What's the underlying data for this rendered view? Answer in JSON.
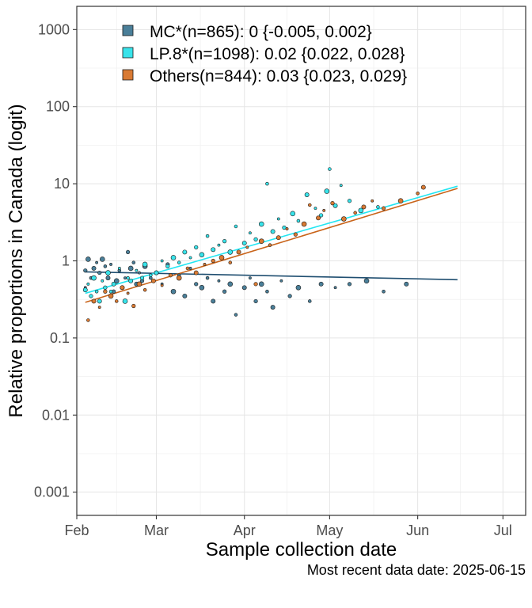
{
  "chart_data": {
    "type": "scatter",
    "xlabel": "Sample collection date",
    "ylabel": "Relative proportions in Canada (logit)",
    "caption": "Most recent data date: 2025-06-15",
    "y_scale": "log",
    "xlim": [
      "2025-02-01",
      "2025-07-09"
    ],
    "ylim": [
      0.0005,
      2000
    ],
    "grid": true,
    "legend_position": "top-left",
    "x_ticks": [
      {
        "date": "2025-02-01",
        "label": "Feb"
      },
      {
        "date": "2025-03-01",
        "label": "Mar"
      },
      {
        "date": "2025-04-01",
        "label": "Apr"
      },
      {
        "date": "2025-05-01",
        "label": "May"
      },
      {
        "date": "2025-06-01",
        "label": "Jun"
      },
      {
        "date": "2025-07-01",
        "label": "Jul"
      }
    ],
    "y_ticks": [
      {
        "value": 0.001,
        "label": "0.001"
      },
      {
        "value": 0.01,
        "label": "0.01"
      },
      {
        "value": 0.1,
        "label": "0.1"
      },
      {
        "value": 1,
        "label": "1"
      },
      {
        "value": 10,
        "label": "10"
      },
      {
        "value": 100,
        "label": "100"
      },
      {
        "value": 1000,
        "label": "1000"
      }
    ],
    "series": [
      {
        "name": "MC*(n=865): 0 {-0.005, 0.002}",
        "color": "#4a7f99",
        "line_color": "#1f4e70",
        "trend": [
          [
            "2025-02-04",
            0.72
          ],
          [
            "2025-06-15",
            0.57
          ]
        ],
        "points": [
          [
            "2025-02-04",
            0.45
          ],
          [
            "2025-02-04",
            0.75
          ],
          [
            "2025-02-05",
            1.05
          ],
          [
            "2025-02-06",
            0.6
          ],
          [
            "2025-02-07",
            0.8
          ],
          [
            "2025-02-08",
            0.95
          ],
          [
            "2025-02-09",
            0.7
          ],
          [
            "2025-02-10",
            1.05
          ],
          [
            "2025-02-11",
            0.85
          ],
          [
            "2025-02-12",
            0.6
          ],
          [
            "2025-02-13",
            0.9
          ],
          [
            "2025-02-14",
            0.4
          ],
          [
            "2025-02-15",
            0.55
          ],
          [
            "2025-02-16",
            0.75
          ],
          [
            "2025-02-17",
            0.45
          ],
          [
            "2025-02-18",
            0.6
          ],
          [
            "2025-02-19",
            1.3
          ],
          [
            "2025-02-20",
            0.8
          ],
          [
            "2025-02-21",
            0.95
          ],
          [
            "2025-02-22",
            0.5
          ],
          [
            "2025-02-23",
            0.7
          ],
          [
            "2025-02-24",
            0.55
          ],
          [
            "2025-02-25",
            0.85
          ],
          [
            "2025-02-27",
            0.6
          ],
          [
            "2025-03-01",
            0.7
          ],
          [
            "2025-03-03",
            0.5
          ],
          [
            "2025-03-05",
            0.9
          ],
          [
            "2025-03-07",
            0.4
          ],
          [
            "2025-03-09",
            0.65
          ],
          [
            "2025-03-11",
            0.35
          ],
          [
            "2025-03-13",
            0.8
          ],
          [
            "2025-03-15",
            0.5
          ],
          [
            "2025-03-17",
            0.45
          ],
          [
            "2025-03-19",
            0.6
          ],
          [
            "2025-03-21",
            0.3
          ],
          [
            "2025-03-23",
            0.55
          ],
          [
            "2025-03-25",
            0.4
          ],
          [
            "2025-03-27",
            0.5
          ],
          [
            "2025-03-29",
            0.2
          ],
          [
            "2025-04-01",
            0.45
          ],
          [
            "2025-04-03",
            0.6
          ],
          [
            "2025-04-05",
            0.3
          ],
          [
            "2025-04-07",
            0.5
          ],
          [
            "2025-04-09",
            0.4
          ],
          [
            "2025-04-11",
            0.25
          ],
          [
            "2025-04-14",
            0.55
          ],
          [
            "2025-04-17",
            0.35
          ],
          [
            "2025-04-20",
            0.45
          ],
          [
            "2025-04-24",
            0.3
          ],
          [
            "2025-04-28",
            0.5
          ],
          [
            "2025-05-03",
            0.45
          ],
          [
            "2025-05-08",
            0.5
          ],
          [
            "2025-05-14",
            0.55
          ],
          [
            "2025-05-20",
            0.4
          ],
          [
            "2025-05-28",
            0.5
          ]
        ]
      },
      {
        "name": "LP.8*(n=1098): 0.02 {0.022, 0.028}",
        "color": "#38e3ea",
        "line_color": "#22e6f2",
        "trend": [
          [
            "2025-02-04",
            0.38
          ],
          [
            "2025-06-15",
            9.3
          ]
        ],
        "points": [
          [
            "2025-02-04",
            0.42
          ],
          [
            "2025-02-05",
            0.5
          ],
          [
            "2025-02-06",
            0.35
          ],
          [
            "2025-02-07",
            0.6
          ],
          [
            "2025-02-08",
            0.4
          ],
          [
            "2025-02-09",
            0.3
          ],
          [
            "2025-02-10",
            0.55
          ],
          [
            "2025-02-11",
            0.45
          ],
          [
            "2025-02-12",
            0.7
          ],
          [
            "2025-02-13",
            0.4
          ],
          [
            "2025-02-14",
            0.5
          ],
          [
            "2025-02-16",
            0.8
          ],
          [
            "2025-02-17",
            0.45
          ],
          [
            "2025-02-18",
            0.3
          ],
          [
            "2025-02-19",
            0.6
          ],
          [
            "2025-02-20",
            0.55
          ],
          [
            "2025-02-22",
            0.75
          ],
          [
            "2025-02-24",
            0.6
          ],
          [
            "2025-02-25",
            0.9
          ],
          [
            "2025-02-27",
            0.65
          ],
          [
            "2025-03-01",
            0.7
          ],
          [
            "2025-03-03",
            1.0
          ],
          [
            "2025-03-05",
            0.85
          ],
          [
            "2025-03-07",
            1.1
          ],
          [
            "2025-03-09",
            0.95
          ],
          [
            "2025-03-11",
            1.3
          ],
          [
            "2025-03-13",
            1.1
          ],
          [
            "2025-03-15",
            1.5
          ],
          [
            "2025-03-17",
            1.2
          ],
          [
            "2025-03-19",
            2.1
          ],
          [
            "2025-03-21",
            1.4
          ],
          [
            "2025-03-23",
            1.6
          ],
          [
            "2025-03-25",
            1.8
          ],
          [
            "2025-03-27",
            1.3
          ],
          [
            "2025-03-29",
            2.8
          ],
          [
            "2025-04-01",
            1.7
          ],
          [
            "2025-04-03",
            2.3
          ],
          [
            "2025-04-05",
            1.9
          ],
          [
            "2025-04-07",
            3.0
          ],
          [
            "2025-04-09",
            10.0
          ],
          [
            "2025-04-11",
            2.4
          ],
          [
            "2025-04-13",
            3.5
          ],
          [
            "2025-04-15",
            2.7
          ],
          [
            "2025-04-18",
            4.1
          ],
          [
            "2025-04-20",
            3.3
          ],
          [
            "2025-04-23",
            7.2
          ],
          [
            "2025-04-26",
            4.8
          ],
          [
            "2025-04-28",
            3.9
          ],
          [
            "2025-04-30",
            8.0
          ],
          [
            "2025-05-01",
            15.5
          ],
          [
            "2025-05-03",
            5.2
          ],
          [
            "2025-05-05",
            9.5
          ],
          [
            "2025-05-08",
            6.0
          ],
          [
            "2025-05-12",
            4.5
          ],
          [
            "2025-05-18",
            5.0
          ]
        ]
      },
      {
        "name": "Others(n=844): 0.03 {0.023, 0.029}",
        "color": "#d97a33",
        "line_color": "#c9641a",
        "trend": [
          [
            "2025-02-04",
            0.29
          ],
          [
            "2025-06-15",
            8.7
          ]
        ],
        "points": [
          [
            "2025-02-05",
            0.17
          ],
          [
            "2025-02-07",
            0.3
          ],
          [
            "2025-02-09",
            0.25
          ],
          [
            "2025-02-11",
            0.4
          ],
          [
            "2025-02-13",
            0.35
          ],
          [
            "2025-02-15",
            0.3
          ],
          [
            "2025-02-17",
            0.45
          ],
          [
            "2025-02-19",
            0.38
          ],
          [
            "2025-02-21",
            0.26
          ],
          [
            "2025-02-23",
            0.5
          ],
          [
            "2025-02-25",
            0.42
          ],
          [
            "2025-02-28",
            0.55
          ],
          [
            "2025-03-03",
            0.48
          ],
          [
            "2025-03-06",
            0.65
          ],
          [
            "2025-03-09",
            0.6
          ],
          [
            "2025-03-12",
            0.8
          ],
          [
            "2025-03-15",
            0.7
          ],
          [
            "2025-03-18",
            0.9
          ],
          [
            "2025-03-21",
            1.0
          ],
          [
            "2025-03-24",
            1.1
          ],
          [
            "2025-03-27",
            0.95
          ],
          [
            "2025-03-30",
            1.3
          ],
          [
            "2025-04-02",
            1.5
          ],
          [
            "2025-04-05",
            0.5
          ],
          [
            "2025-04-07",
            1.8
          ],
          [
            "2025-04-10",
            1.6
          ],
          [
            "2025-04-13",
            2.0
          ],
          [
            "2025-04-16",
            2.6
          ],
          [
            "2025-04-19",
            2.2
          ],
          [
            "2025-04-22",
            3.0
          ],
          [
            "2025-04-24",
            5.3
          ],
          [
            "2025-04-27",
            3.6
          ],
          [
            "2025-04-29",
            4.5
          ],
          [
            "2025-05-02",
            5.6
          ],
          [
            "2025-05-06",
            3.5
          ],
          [
            "2025-05-10",
            4.2
          ],
          [
            "2025-05-13",
            5.0
          ],
          [
            "2025-05-16",
            6.0
          ],
          [
            "2025-05-20",
            4.8
          ],
          [
            "2025-05-26",
            6.0
          ],
          [
            "2025-06-01",
            7.5
          ],
          [
            "2025-06-03",
            9.0
          ]
        ]
      }
    ]
  }
}
